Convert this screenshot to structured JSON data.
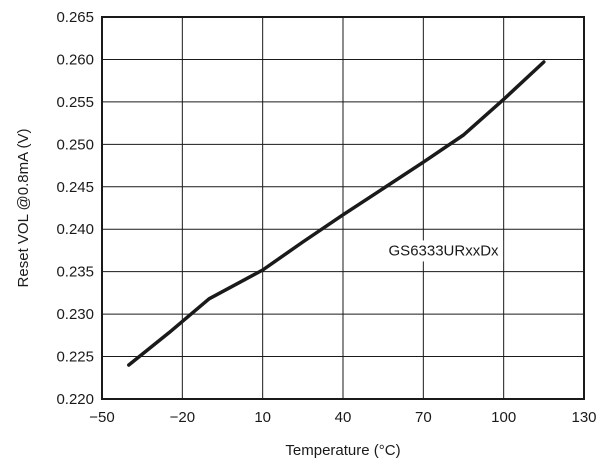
{
  "chart_data": {
    "type": "line",
    "title": "",
    "xlabel": "Temperature (°C)",
    "ylabel": "Reset VOL @0.8mA (V)",
    "xlim": [
      -50,
      130
    ],
    "ylim": [
      0.22,
      0.265
    ],
    "x_ticks": [
      -50,
      -20,
      10,
      40,
      70,
      100,
      130
    ],
    "x_tick_labels": [
      "−50",
      "−20",
      "10",
      "40",
      "70",
      "100",
      "130"
    ],
    "y_ticks": [
      0.22,
      0.225,
      0.23,
      0.235,
      0.24,
      0.245,
      0.25,
      0.255,
      0.26,
      0.265
    ],
    "y_tick_labels": [
      "0.220",
      "0.225",
      "0.230",
      "0.235",
      "0.240",
      "0.245",
      "0.250",
      "0.255",
      "0.260",
      "0.265"
    ],
    "grid": true,
    "series": [
      {
        "name": "GS6333URxxDx",
        "color": "#1a1a1a",
        "x": [
          -40,
          -25,
          -10,
          10,
          25,
          40,
          55,
          70,
          85,
          100,
          115
        ],
        "y": [
          0.224,
          0.2278,
          0.2318,
          0.2352,
          0.2385,
          0.2417,
          0.2448,
          0.2479,
          0.2511,
          0.2553,
          0.2597
        ]
      }
    ],
    "annotations": [
      {
        "text": "GS6333URxxDx",
        "x": 57,
        "y": 0.2375
      }
    ]
  }
}
